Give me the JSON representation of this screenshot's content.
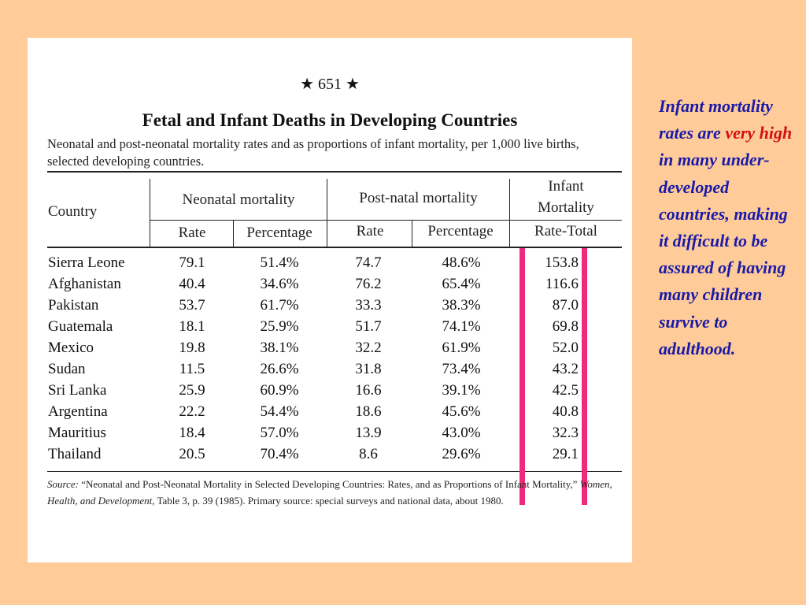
{
  "page_number": "★ 651 ★",
  "title": "Fetal and Infant Deaths in Developing Countries",
  "subtitle": "Neonatal and post-neonatal mortality rates and as proportions of infant mortality, per 1,000 live births, selected developing countries.",
  "headers": {
    "country": "Country",
    "neonatal": "Neonatal mortality",
    "postnatal": "Post-natal mortality",
    "infant_line1": "Infant",
    "infant_line2": "Mortality",
    "rate": "Rate",
    "percentage": "Percentage",
    "rate_total": "Rate-Total"
  },
  "rows": [
    {
      "country": "Sierra Leone",
      "n_rate": "79.1",
      "n_pct": "51.4%",
      "p_rate": "74.7",
      "p_pct": "48.6%",
      "total": "153.8"
    },
    {
      "country": "Afghanistan",
      "n_rate": "40.4",
      "n_pct": "34.6%",
      "p_rate": "76.2",
      "p_pct": "65.4%",
      "total": "116.6"
    },
    {
      "country": "Pakistan",
      "n_rate": "53.7",
      "n_pct": "61.7%",
      "p_rate": "33.3",
      "p_pct": "38.3%",
      "total": "87.0"
    },
    {
      "country": "Guatemala",
      "n_rate": "18.1",
      "n_pct": "25.9%",
      "p_rate": "51.7",
      "p_pct": "74.1%",
      "total": "69.8"
    },
    {
      "country": "Mexico",
      "n_rate": "19.8",
      "n_pct": "38.1%",
      "p_rate": "32.2",
      "p_pct": "61.9%",
      "total": "52.0"
    },
    {
      "country": "Sudan",
      "n_rate": "11.5",
      "n_pct": "26.6%",
      "p_rate": "31.8",
      "p_pct": "73.4%",
      "total": "43.2"
    },
    {
      "country": "Sri Lanka",
      "n_rate": "25.9",
      "n_pct": "60.9%",
      "p_rate": "16.6",
      "p_pct": "39.1%",
      "total": "42.5"
    },
    {
      "country": "Argentina",
      "n_rate": "22.2",
      "n_pct": "54.4%",
      "p_rate": "18.6",
      "p_pct": "45.6%",
      "total": "40.8"
    },
    {
      "country": "Mauritius",
      "n_rate": "18.4",
      "n_pct": "57.0%",
      "p_rate": "13.9",
      "p_pct": "43.0%",
      "total": "32.3"
    },
    {
      "country": "Thailand",
      "n_rate": "20.5",
      "n_pct": "70.4%",
      "p_rate": "8.6",
      "p_pct": "29.6%",
      "total": "29.1"
    }
  ],
  "source": {
    "label": "Source:",
    "text1": "“Neonatal and Post-Neonatal Mortality in Selected Developing Countries: Rates, and as Proportions of Infant Mortality,”",
    "publication": "Women, Health, and Development,",
    "text2": "Table 3, p. 39 (1985). Primary source: special surveys and national data, about 1980."
  },
  "side_text": {
    "part1": "Infant mortality rates are",
    "emphasis": "very high",
    "part2": "in many under-developed countries, making it difficult to be assured of having many children survive to adulthood."
  },
  "colors": {
    "background": "#ffcc99",
    "side_text": "#1a1aa8",
    "emphasis": "#d11010",
    "highlight": "#ee2b7b"
  }
}
